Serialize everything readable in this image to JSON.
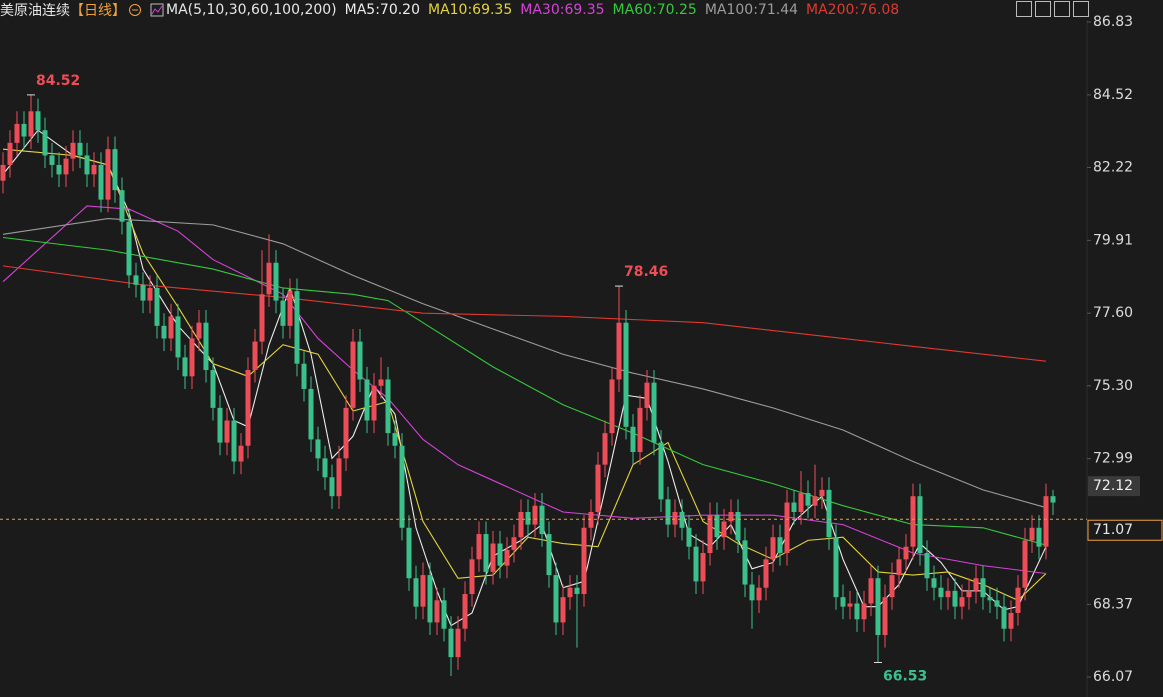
{
  "chart_data": {
    "type": "candlestick",
    "title": "美原油连续",
    "period": "【日线】",
    "ma_label": "MA(5,10,30,60,100,200)",
    "up_color": "#ec4d57",
    "down_color": "#3cc08b",
    "ylim": [
      66.07,
      86.83
    ],
    "yticks": [
      86.83,
      84.52,
      82.22,
      79.91,
      {
        "value": 77.6,
        "label": "77.60"
      },
      {
        "value": 75.3,
        "label": "75.30"
      },
      72.99,
      68.37,
      66.07
    ],
    "open": [
      81.8,
      82.3,
      83.0,
      83.6,
      83.2,
      84.0,
      83.4,
      82.6,
      82.3,
      82.0,
      82.5,
      83.0,
      82.6,
      82.0,
      82.3,
      81.2,
      82.8,
      81.5,
      80.5,
      78.8,
      78.5,
      78.0,
      78.4,
      77.2,
      76.8,
      77.5,
      76.2,
      75.6,
      76.8,
      77.3,
      75.8,
      74.6,
      73.5,
      74.2,
      72.9,
      73.4,
      75.8,
      76.7,
      78.2,
      79.2,
      78.0,
      77.2,
      78.3,
      76.0,
      75.2,
      73.6,
      73.0,
      72.4,
      71.8,
      73.0,
      74.6,
      76.7,
      75.5,
      74.2,
      75.3,
      75.5,
      73.8,
      73.4,
      70.8,
      69.2,
      68.3,
      69.3,
      67.8,
      68.5,
      67.6,
      66.7,
      67.6,
      68.7,
      69.8,
      70.6,
      69.4,
      70.3,
      69.6,
      70.1,
      70.5,
      71.3,
      70.9,
      71.5,
      70.6,
      69.3,
      67.8,
      68.6,
      68.9,
      68.7,
      70.8,
      71.3,
      72.8,
      73.8,
      75.5,
      77.3,
      74.0,
      73.2,
      74.6,
      75.4,
      73.5,
      71.7,
      70.9,
      71.3,
      70.8,
      70.2,
      69.1,
      70.0,
      71.2,
      70.5,
      71.0,
      71.3,
      70.4,
      69.0,
      68.5,
      68.9,
      69.8,
      70.5,
      70.0,
      71.6,
      71.3,
      71.9,
      71.5,
      71.8,
      72.0,
      70.5,
      68.6,
      68.3,
      68.4,
      67.9,
      68.4,
      69.2,
      67.4,
      68.6,
      69.3,
      69.8,
      70.2,
      71.8,
      70.0,
      69.2,
      68.9,
      68.6,
      68.8,
      68.3,
      68.6,
      68.8,
      69.2,
      68.6,
      68.5,
      68.3,
      67.6,
      68.1,
      68.9,
      70.4,
      70.8,
      70.2,
      71.8
    ],
    "high": [
      82.7,
      83.4,
      84.0,
      84.0,
      84.52,
      84.4,
      83.8,
      83.0,
      82.7,
      82.9,
      83.4,
      83.4,
      83.0,
      82.7,
      82.7,
      83.2,
      83.2,
      81.9,
      80.9,
      79.2,
      78.9,
      78.8,
      78.8,
      77.6,
      77.9,
      77.9,
      76.6,
      77.2,
      77.7,
      77.7,
      76.2,
      75.0,
      74.6,
      74.6,
      73.8,
      76.2,
      77.1,
      79.6,
      80.1,
      79.6,
      78.4,
      78.7,
      78.7,
      76.4,
      75.6,
      74.0,
      73.4,
      72.8,
      73.4,
      75.0,
      77.1,
      77.1,
      75.9,
      75.7,
      76.2,
      75.9,
      74.2,
      73.8,
      71.2,
      69.6,
      69.7,
      69.7,
      68.9,
      68.9,
      68.0,
      68.0,
      69.1,
      70.2,
      71.0,
      71.0,
      70.7,
      70.7,
      70.5,
      70.9,
      71.7,
      71.7,
      71.9,
      71.9,
      71.0,
      69.7,
      69.0,
      69.3,
      69.3,
      71.2,
      71.7,
      73.2,
      74.2,
      75.9,
      78.46,
      77.7,
      74.4,
      75.0,
      75.8,
      75.8,
      73.9,
      72.1,
      71.7,
      71.7,
      71.2,
      70.6,
      70.4,
      71.6,
      71.6,
      71.4,
      71.7,
      71.7,
      70.8,
      69.4,
      69.3,
      70.2,
      70.9,
      70.9,
      72.0,
      72.0,
      72.6,
      72.3,
      72.8,
      72.4,
      72.4,
      70.9,
      69.0,
      68.8,
      68.8,
      68.8,
      69.6,
      69.6,
      69.0,
      69.7,
      70.2,
      70.6,
      72.2,
      72.2,
      70.4,
      69.6,
      69.3,
      69.2,
      69.2,
      69.0,
      69.2,
      69.6,
      69.6,
      68.9,
      68.9,
      68.7,
      68.5,
      69.3,
      70.8,
      71.2,
      71.2,
      72.2,
      72.0
    ],
    "low": [
      81.4,
      81.9,
      82.6,
      82.8,
      82.8,
      83.0,
      82.2,
      81.9,
      81.6,
      81.6,
      82.1,
      82.2,
      81.6,
      81.6,
      80.8,
      80.8,
      81.1,
      80.1,
      78.4,
      78.1,
      77.6,
      77.6,
      76.8,
      76.4,
      76.4,
      75.8,
      75.2,
      75.2,
      76.4,
      75.4,
      74.2,
      73.1,
      73.1,
      72.5,
      72.5,
      73.0,
      75.4,
      76.3,
      77.8,
      77.6,
      76.8,
      76.8,
      75.6,
      74.8,
      73.2,
      72.6,
      72.0,
      71.4,
      71.4,
      72.6,
      74.2,
      75.1,
      73.8,
      73.8,
      74.9,
      73.4,
      73.0,
      70.4,
      68.8,
      67.9,
      67.9,
      67.4,
      67.4,
      67.2,
      66.1,
      66.3,
      67.2,
      68.3,
      69.4,
      69.0,
      69.0,
      69.2,
      69.2,
      69.7,
      70.1,
      70.5,
      70.5,
      70.2,
      68.9,
      67.4,
      67.4,
      68.2,
      67.0,
      68.3,
      70.4,
      70.9,
      72.4,
      73.4,
      75.1,
      73.6,
      72.8,
      72.8,
      74.2,
      73.1,
      71.3,
      70.5,
      70.5,
      70.4,
      69.8,
      68.7,
      68.7,
      69.6,
      70.1,
      70.1,
      70.6,
      70.0,
      68.6,
      67.6,
      68.1,
      68.5,
      69.4,
      69.6,
      69.6,
      70.9,
      70.9,
      71.1,
      71.1,
      71.4,
      70.1,
      68.2,
      67.9,
      67.9,
      67.5,
      67.5,
      68.0,
      66.53,
      67.0,
      68.2,
      68.9,
      69.4,
      69.8,
      69.6,
      68.8,
      68.5,
      68.2,
      68.2,
      67.9,
      67.9,
      68.2,
      68.4,
      68.2,
      68.1,
      67.9,
      67.2,
      67.2,
      67.7,
      68.5,
      70.0,
      69.8,
      69.8,
      71.2
    ],
    "close": [
      82.3,
      83.0,
      83.6,
      83.2,
      84.0,
      83.4,
      82.6,
      82.3,
      82.0,
      82.5,
      83.0,
      82.6,
      82.0,
      82.3,
      81.2,
      82.8,
      81.5,
      80.5,
      78.8,
      78.5,
      78.0,
      78.4,
      77.2,
      76.8,
      77.5,
      76.2,
      75.6,
      76.8,
      77.3,
      75.8,
      74.6,
      73.5,
      74.2,
      72.9,
      73.4,
      75.8,
      76.7,
      78.2,
      79.2,
      78.0,
      77.2,
      78.3,
      76.0,
      75.2,
      73.6,
      73.0,
      72.4,
      71.8,
      73.0,
      74.6,
      76.7,
      75.5,
      74.2,
      75.3,
      75.5,
      73.8,
      73.4,
      70.8,
      69.2,
      68.3,
      69.3,
      67.8,
      68.5,
      67.6,
      66.7,
      67.6,
      68.7,
      69.8,
      70.6,
      69.4,
      70.3,
      69.6,
      70.1,
      70.5,
      71.3,
      70.9,
      71.5,
      70.6,
      69.3,
      67.8,
      68.6,
      68.9,
      68.7,
      70.8,
      71.3,
      72.8,
      73.8,
      75.5,
      77.3,
      74.0,
      73.2,
      74.6,
      75.4,
      73.5,
      71.7,
      70.9,
      71.3,
      70.8,
      70.2,
      69.1,
      70.0,
      71.2,
      70.5,
      71.0,
      71.3,
      70.4,
      69.0,
      68.5,
      68.9,
      69.8,
      70.5,
      70.0,
      71.6,
      71.3,
      71.9,
      71.5,
      71.8,
      72.0,
      70.5,
      68.6,
      68.3,
      68.4,
      67.9,
      68.4,
      69.2,
      67.4,
      68.6,
      69.3,
      69.8,
      70.2,
      71.8,
      70.0,
      69.2,
      68.9,
      68.6,
      68.8,
      68.3,
      68.6,
      68.8,
      69.2,
      68.6,
      68.5,
      68.3,
      67.6,
      68.1,
      68.9,
      70.4,
      70.8,
      70.2,
      71.8,
      71.6
    ],
    "ma_series": [
      {
        "name": "MA5:70.20",
        "color": "#ececec",
        "x": [
          0,
          5,
          10,
          15,
          18,
          20,
          25,
          30,
          33,
          35,
          38,
          41,
          44,
          47,
          50,
          53,
          56,
          59,
          62,
          64,
          67,
          70,
          74,
          77,
          80,
          83,
          86,
          89,
          92,
          95,
          98,
          101,
          104,
          107,
          110,
          113,
          117,
          120,
          123,
          125,
          128,
          131,
          134,
          137,
          140,
          143,
          145,
          149
        ],
        "values": [
          82.0,
          83.4,
          82.6,
          82.3,
          80.8,
          79.0,
          77.2,
          76.0,
          74.2,
          74.0,
          76.6,
          78.4,
          76.3,
          73.0,
          73.7,
          75.3,
          74.4,
          70.8,
          68.8,
          67.7,
          68.1,
          69.9,
          70.4,
          70.9,
          68.9,
          69.1,
          72.0,
          75.0,
          74.9,
          72.9,
          70.6,
          70.2,
          70.9,
          69.5,
          69.7,
          71.0,
          71.8,
          69.8,
          68.3,
          68.3,
          69.0,
          70.3,
          69.7,
          68.8,
          68.8,
          68.2,
          68.3,
          70.2
        ]
      },
      {
        "name": "MA10:69.35",
        "color": "#e4d33a",
        "x": [
          0,
          10,
          15,
          20,
          25,
          30,
          35,
          40,
          45,
          50,
          55,
          60,
          65,
          70,
          75,
          80,
          85,
          90,
          95,
          100,
          105,
          110,
          115,
          120,
          125,
          130,
          135,
          140,
          145,
          149
        ],
        "values": [
          82.8,
          82.6,
          82.3,
          79.5,
          77.8,
          76.0,
          75.6,
          76.6,
          76.3,
          74.5,
          74.8,
          71.0,
          69.2,
          69.3,
          70.5,
          70.3,
          70.2,
          72.8,
          73.5,
          71.0,
          70.3,
          69.8,
          70.4,
          70.5,
          69.4,
          69.3,
          69.4,
          69.0,
          68.5,
          69.35
        ]
      },
      {
        "name": "MA30:69.35",
        "color": "#d542d6",
        "x": [
          0,
          12,
          18,
          25,
          30,
          40,
          45,
          50,
          55,
          60,
          65,
          70,
          75,
          80,
          90,
          100,
          110,
          120,
          130,
          140,
          149
        ],
        "values": [
          78.6,
          81.0,
          80.9,
          80.2,
          79.3,
          78.2,
          76.8,
          75.8,
          74.9,
          73.6,
          72.8,
          72.3,
          71.8,
          71.3,
          71.1,
          71.2,
          71.2,
          70.9,
          70.0,
          69.6,
          69.35
        ]
      },
      {
        "name": "MA60:70.25",
        "color": "#35c93c",
        "x": [
          0,
          15,
          30,
          40,
          50,
          55,
          60,
          70,
          80,
          90,
          100,
          110,
          120,
          130,
          140,
          149
        ],
        "values": [
          80.0,
          79.6,
          79.0,
          78.4,
          78.2,
          78.0,
          77.3,
          75.9,
          74.7,
          73.8,
          72.8,
          72.2,
          71.5,
          70.9,
          70.8,
          70.25
        ]
      },
      {
        "name": "MA100:71.44",
        "color": "#9c9c9c",
        "x": [
          0,
          15,
          30,
          40,
          50,
          60,
          70,
          80,
          90,
          100,
          110,
          120,
          130,
          140,
          149
        ],
        "values": [
          80.1,
          80.6,
          80.4,
          79.8,
          78.8,
          77.9,
          77.1,
          76.3,
          75.7,
          75.2,
          74.6,
          73.9,
          72.9,
          72.0,
          71.44
        ]
      },
      {
        "name": "MA200:76.08",
        "color": "#e0392f",
        "x": [
          0,
          20,
          40,
          60,
          80,
          100,
          120,
          140,
          149
        ],
        "values": [
          79.1,
          78.5,
          78.1,
          77.6,
          77.5,
          77.3,
          76.8,
          76.3,
          76.08
        ]
      }
    ],
    "price_line": {
      "value": 71.07,
      "color": "#f0a23a"
    },
    "ref_price": 72.12
  }
}
